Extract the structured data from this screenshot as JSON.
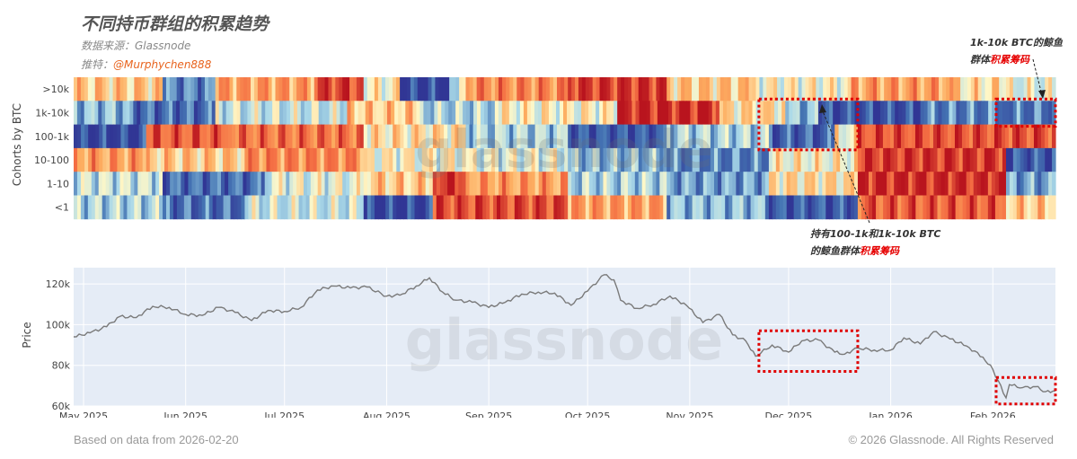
{
  "header": {
    "title": "不同持币群组的积累趋势",
    "source": "数据来源：Glassnode",
    "twitter_label": "推特：",
    "twitter_handle": "@Murphychen888"
  },
  "footer": {
    "left": "Based on data from 2026-02-20",
    "right": "© 2026 Glassnode. All Rights Reserved"
  },
  "watermark": "glassnode",
  "annotations": {
    "top_right": {
      "line1": "1k-10k BTC的鲸鱼",
      "line2_a": "群体",
      "line2_b": "积累筹码"
    },
    "bottom": {
      "line1": "持有100-1k和1k-10k BTC",
      "line2_a": "的鲸鱼群体",
      "line2_b": "积累筹码"
    }
  },
  "colors": {
    "accent_handle": "#e8641f",
    "highlight_box": "#e00000",
    "price_line": "#7a7a7a",
    "plot_bg": "#e5ecf6"
  },
  "chart_data": [
    {
      "type": "heatmap",
      "ylabel": "Cohorts by BTC",
      "rows": [
        ">10k",
        "1k-10k",
        "100-1k",
        "10-100",
        "1-10",
        "<1"
      ],
      "x_range": [
        "2025-04-28",
        "2026-02-20"
      ],
      "scale": "accumulation (blue) to distribution (red)",
      "segments": [
        {
          "row": ">10k",
          "blocks": [
            [
              "2025-04-28",
              "2025-05-25",
              0.6
            ],
            [
              "2025-05-25",
              "2025-06-10",
              0.2
            ],
            [
              "2025-06-10",
              "2025-07-10",
              0.7
            ],
            [
              "2025-07-10",
              "2025-07-25",
              0.9
            ],
            [
              "2025-07-25",
              "2025-08-05",
              0.5
            ],
            [
              "2025-08-05",
              "2025-08-20",
              0.05
            ],
            [
              "2025-08-20",
              "2025-08-25",
              0.4
            ],
            [
              "2025-08-25",
              "2025-09-25",
              0.75
            ],
            [
              "2025-09-25",
              "2025-10-25",
              0.92
            ],
            [
              "2025-10-25",
              "2025-11-20",
              0.6
            ],
            [
              "2025-11-20",
              "2025-12-20",
              0.5
            ],
            [
              "2025-12-20",
              "2026-01-20",
              0.7
            ],
            [
              "2026-01-20",
              "2026-02-05",
              0.55
            ],
            [
              "2026-02-05",
              "2026-02-20",
              0.45
            ]
          ]
        },
        {
          "row": "1k-10k",
          "blocks": [
            [
              "2025-04-28",
              "2025-05-15",
              0.3
            ],
            [
              "2025-05-15",
              "2025-06-10",
              0.15
            ],
            [
              "2025-06-10",
              "2025-07-20",
              0.4
            ],
            [
              "2025-07-20",
              "2025-08-10",
              0.6
            ],
            [
              "2025-08-10",
              "2025-09-05",
              0.35
            ],
            [
              "2025-09-05",
              "2025-10-10",
              0.5
            ],
            [
              "2025-10-10",
              "2025-11-10",
              0.95
            ],
            [
              "2025-11-10",
              "2025-11-30",
              0.55
            ],
            [
              "2025-11-30",
              "2025-12-10",
              0.3
            ],
            [
              "2025-12-10",
              "2026-01-10",
              0.08
            ],
            [
              "2026-01-10",
              "2026-02-05",
              0.2
            ],
            [
              "2026-02-05",
              "2026-02-20",
              0.18
            ]
          ]
        },
        {
          "row": "100-1k",
          "blocks": [
            [
              "2025-04-28",
              "2025-05-20",
              0.05
            ],
            [
              "2025-05-20",
              "2025-06-15",
              0.85
            ],
            [
              "2025-06-15",
              "2025-07-25",
              0.8
            ],
            [
              "2025-07-25",
              "2025-08-25",
              0.55
            ],
            [
              "2025-08-25",
              "2025-09-25",
              0.35
            ],
            [
              "2025-09-25",
              "2025-10-25",
              0.1
            ],
            [
              "2025-10-25",
              "2025-11-25",
              0.35
            ],
            [
              "2025-11-25",
              "2025-12-15",
              0.12
            ],
            [
              "2025-12-15",
              "2025-12-22",
              0.5
            ],
            [
              "2025-12-22",
              "2026-02-20",
              0.88
            ]
          ]
        },
        {
          "row": "10-100",
          "blocks": [
            [
              "2025-04-28",
              "2025-05-20",
              0.7
            ],
            [
              "2025-05-20",
              "2025-06-20",
              0.6
            ],
            [
              "2025-06-20",
              "2025-07-25",
              0.75
            ],
            [
              "2025-07-25",
              "2025-08-25",
              0.5
            ],
            [
              "2025-08-25",
              "2025-09-25",
              0.45
            ],
            [
              "2025-09-25",
              "2025-10-25",
              0.3
            ],
            [
              "2025-10-25",
              "2025-11-25",
              0.2
            ],
            [
              "2025-11-25",
              "2025-12-22",
              0.5
            ],
            [
              "2025-12-22",
              "2026-02-05",
              0.93
            ],
            [
              "2026-02-05",
              "2026-02-20",
              0.1
            ]
          ]
        },
        {
          "row": "1-10",
          "blocks": [
            [
              "2025-04-28",
              "2025-05-25",
              0.4
            ],
            [
              "2025-05-25",
              "2025-06-25",
              0.15
            ],
            [
              "2025-06-25",
              "2025-07-25",
              0.45
            ],
            [
              "2025-07-25",
              "2025-08-15",
              0.6
            ],
            [
              "2025-08-15",
              "2025-08-25",
              0.95
            ],
            [
              "2025-08-25",
              "2025-09-25",
              0.7
            ],
            [
              "2025-09-25",
              "2025-10-25",
              0.35
            ],
            [
              "2025-10-25",
              "2025-11-25",
              0.25
            ],
            [
              "2025-11-25",
              "2025-12-22",
              0.55
            ],
            [
              "2025-12-22",
              "2026-02-05",
              0.95
            ],
            [
              "2026-02-05",
              "2026-02-20",
              0.25
            ]
          ]
        },
        {
          "row": "<1",
          "blocks": [
            [
              "2025-04-28",
              "2025-05-25",
              0.35
            ],
            [
              "2025-05-25",
              "2025-06-20",
              0.15
            ],
            [
              "2025-06-20",
              "2025-07-25",
              0.4
            ],
            [
              "2025-07-25",
              "2025-08-15",
              0.05
            ],
            [
              "2025-08-15",
              "2025-09-25",
              0.88
            ],
            [
              "2025-09-25",
              "2025-10-25",
              0.7
            ],
            [
              "2025-10-25",
              "2025-11-25",
              0.3
            ],
            [
              "2025-11-25",
              "2025-12-22",
              0.1
            ],
            [
              "2025-12-22",
              "2026-02-05",
              0.85
            ],
            [
              "2026-02-05",
              "2026-02-20",
              0.6
            ]
          ]
        }
      ],
      "highlights": [
        {
          "rows": [
            "1k-10k",
            "100-1k"
          ],
          "x": [
            "2025-11-22",
            "2025-12-22"
          ]
        },
        {
          "rows": [
            "1k-10k"
          ],
          "x": [
            "2026-02-02",
            "2026-02-20"
          ]
        }
      ]
    },
    {
      "type": "line",
      "ylabel": "Price",
      "x_ticks": [
        "May 2025",
        "Jun 2025",
        "Jul 2025",
        "Aug 2025",
        "Sep 2025",
        "Oct 2025",
        "Nov 2025",
        "Dec 2025",
        "Jan 2026",
        "Feb 2026"
      ],
      "x_tick_dates": [
        "2025-05-01",
        "2025-06-01",
        "2025-07-01",
        "2025-08-01",
        "2025-09-01",
        "2025-10-01",
        "2025-11-01",
        "2025-12-01",
        "2026-01-01",
        "2026-02-01"
      ],
      "y_ticks": [
        "60k",
        "80k",
        "100k",
        "120k"
      ],
      "y_tick_values": [
        60000,
        80000,
        100000,
        120000
      ],
      "ylim": [
        60000,
        128000
      ],
      "x_range": [
        "2025-04-28",
        "2026-02-20"
      ],
      "series": [
        {
          "points": [
            [
              "2025-04-28",
              94000
            ],
            [
              "2025-05-03",
              96000
            ],
            [
              "2025-05-08",
              99000
            ],
            [
              "2025-05-12",
              104000
            ],
            [
              "2025-05-17",
              103500
            ],
            [
              "2025-05-22",
              109000
            ],
            [
              "2025-05-27",
              108500
            ],
            [
              "2025-06-01",
              105000
            ],
            [
              "2025-06-06",
              104500
            ],
            [
              "2025-06-11",
              108500
            ],
            [
              "2025-06-16",
              106000
            ],
            [
              "2025-06-21",
              102000
            ],
            [
              "2025-06-26",
              107000
            ],
            [
              "2025-07-01",
              106500
            ],
            [
              "2025-07-06",
              108500
            ],
            [
              "2025-07-11",
              117000
            ],
            [
              "2025-07-16",
              119000
            ],
            [
              "2025-07-21",
              118000
            ],
            [
              "2025-07-26",
              118500
            ],
            [
              "2025-08-01",
              114000
            ],
            [
              "2025-08-05",
              114500
            ],
            [
              "2025-08-10",
              119000
            ],
            [
              "2025-08-14",
              123000
            ],
            [
              "2025-08-18",
              116000
            ],
            [
              "2025-08-22",
              112000
            ],
            [
              "2025-08-27",
              111000
            ],
            [
              "2025-09-01",
              108500
            ],
            [
              "2025-09-06",
              111000
            ],
            [
              "2025-09-11",
              115000
            ],
            [
              "2025-09-16",
              116000
            ],
            [
              "2025-09-21",
              115500
            ],
            [
              "2025-09-26",
              109500
            ],
            [
              "2025-10-01",
              116500
            ],
            [
              "2025-10-06",
              124500
            ],
            [
              "2025-10-09",
              122000
            ],
            [
              "2025-10-11",
              112000
            ],
            [
              "2025-10-16",
              108000
            ],
            [
              "2025-10-21",
              110000
            ],
            [
              "2025-10-26",
              114000
            ],
            [
              "2025-10-31",
              109500
            ],
            [
              "2025-11-05",
              101000
            ],
            [
              "2025-11-10",
              105000
            ],
            [
              "2025-11-14",
              95000
            ],
            [
              "2025-11-18",
              92000
            ],
            [
              "2025-11-21",
              84500
            ],
            [
              "2025-11-26",
              90000
            ],
            [
              "2025-12-01",
              86500
            ],
            [
              "2025-12-05",
              92000
            ],
            [
              "2025-12-10",
              92500
            ],
            [
              "2025-12-15",
              86500
            ],
            [
              "2025-12-18",
              85500
            ],
            [
              "2025-12-22",
              88500
            ],
            [
              "2025-12-27",
              87500
            ],
            [
              "2026-01-01",
              87500
            ],
            [
              "2026-01-05",
              93500
            ],
            [
              "2026-01-10",
              90500
            ],
            [
              "2026-01-14",
              96500
            ],
            [
              "2026-01-19",
              93000
            ],
            [
              "2026-01-24",
              89500
            ],
            [
              "2026-01-29",
              84000
            ],
            [
              "2026-02-01",
              78000
            ],
            [
              "2026-02-05",
              64000
            ],
            [
              "2026-02-06",
              70500
            ],
            [
              "2026-02-10",
              69000
            ],
            [
              "2026-02-14",
              69500
            ],
            [
              "2026-02-17",
              67000
            ],
            [
              "2026-02-20",
              67500
            ]
          ]
        }
      ],
      "highlights": [
        {
          "x": [
            "2025-11-22",
            "2025-12-22"
          ],
          "y": [
            77000,
            97000
          ]
        },
        {
          "x": [
            "2026-02-02",
            "2026-02-20"
          ],
          "y": [
            61000,
            74000
          ]
        }
      ]
    }
  ]
}
